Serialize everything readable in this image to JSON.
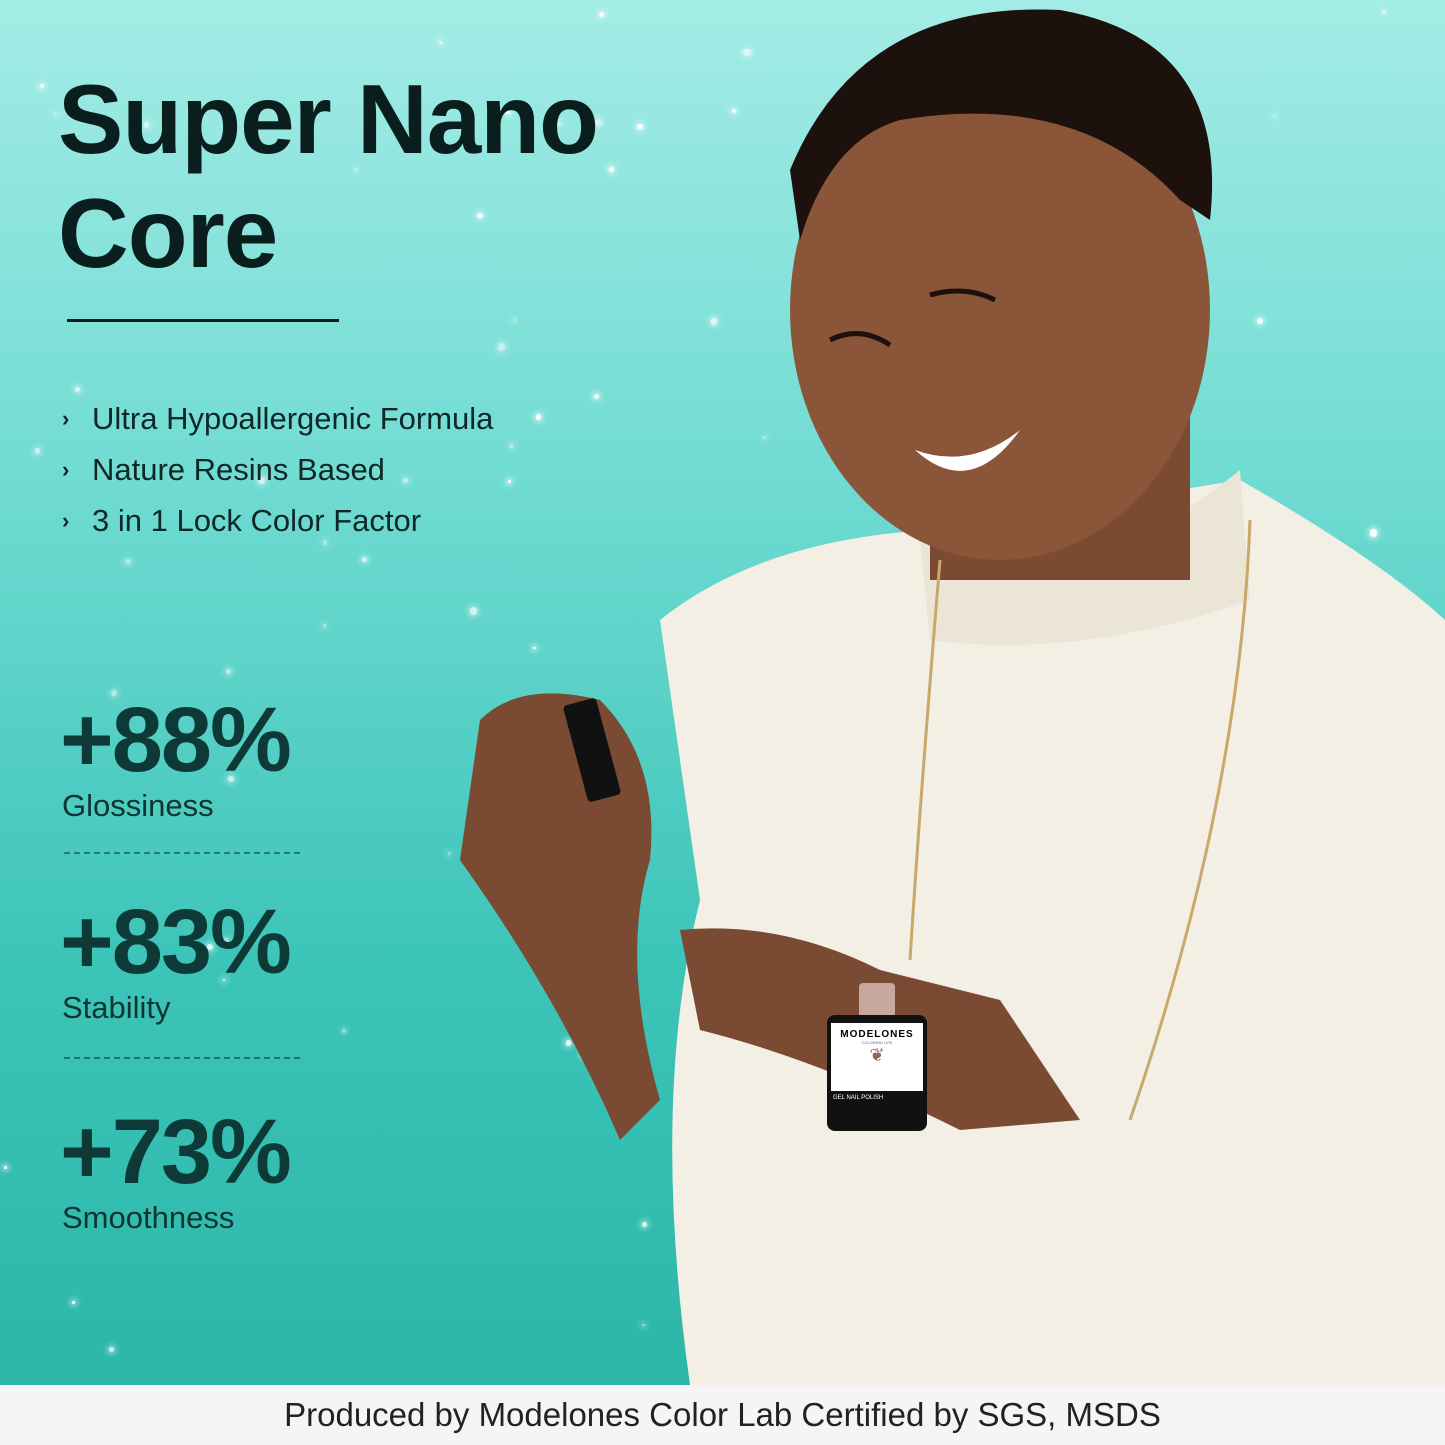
{
  "headline": "Super Nano Core",
  "features": [
    "Ultra Hypoallergenic Formula",
    "Nature Resins Based",
    "3 in 1 Lock Color Factor"
  ],
  "stats": [
    {
      "value": "+88%",
      "label": "Glossiness"
    },
    {
      "value": "+83%",
      "label": "Stability"
    },
    {
      "value": "+73%",
      "label": "Smoothness"
    }
  ],
  "product": {
    "brand": "MODELONES",
    "tagline": "COLORING LIFE",
    "name": "GEL NAIL POLISH"
  },
  "footer": "Produced by Modelones Color Lab Certified by SGS, MSDS",
  "colors": {
    "bg_top": "#a4ece6",
    "bg_bottom": "#2cb6aa",
    "stat_text": "#0d3a36",
    "sweater": "#f3efe4"
  }
}
